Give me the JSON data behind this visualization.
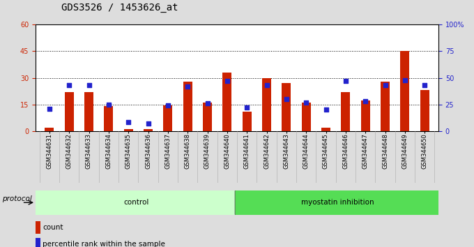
{
  "title": "GDS3526 / 1453626_at",
  "samples": [
    "GSM344631",
    "GSM344632",
    "GSM344633",
    "GSM344634",
    "GSM344635",
    "GSM344636",
    "GSM344637",
    "GSM344638",
    "GSM344639",
    "GSM344640",
    "GSM344641",
    "GSM344642",
    "GSM344643",
    "GSM344644",
    "GSM344645",
    "GSM344646",
    "GSM344647",
    "GSM344648",
    "GSM344649",
    "GSM344650"
  ],
  "counts": [
    2,
    22,
    22,
    14,
    1,
    1,
    14.5,
    28,
    16,
    33,
    11,
    30,
    27,
    16,
    2,
    22,
    17,
    28,
    45,
    23
  ],
  "percentile_left": [
    12.6,
    25.8,
    25.8,
    15,
    4.8,
    4.2,
    14.4,
    25.2,
    15.6,
    28.2,
    13.2,
    25.8,
    18,
    16.2,
    12,
    28.2,
    16.8,
    25.8,
    28.8,
    25.8
  ],
  "bar_color": "#cc2200",
  "dot_color": "#2222cc",
  "left_ylim": [
    0,
    60
  ],
  "right_ylim": [
    0,
    100
  ],
  "left_yticks": [
    0,
    15,
    30,
    45,
    60
  ],
  "right_yticks": [
    0,
    25,
    50,
    75,
    100
  ],
  "right_yticklabels": [
    "0",
    "25",
    "50",
    "75",
    "100%"
  ],
  "groups": [
    {
      "label": "control",
      "start": 0,
      "end": 9,
      "color": "#ccffcc"
    },
    {
      "label": "myostatin inhibition",
      "start": 10,
      "end": 19,
      "color": "#55dd55"
    }
  ],
  "protocol_label": "protocol",
  "legend_items": [
    {
      "label": "count",
      "color": "#cc2200"
    },
    {
      "label": "percentile rank within the sample",
      "color": "#2222cc"
    }
  ],
  "plot_bg": "#ffffff",
  "fig_bg": "#dddddd",
  "xtick_bg": "#cccccc",
  "title_fontsize": 10,
  "tick_fontsize": 7,
  "bar_width": 0.45,
  "dot_size": 18
}
